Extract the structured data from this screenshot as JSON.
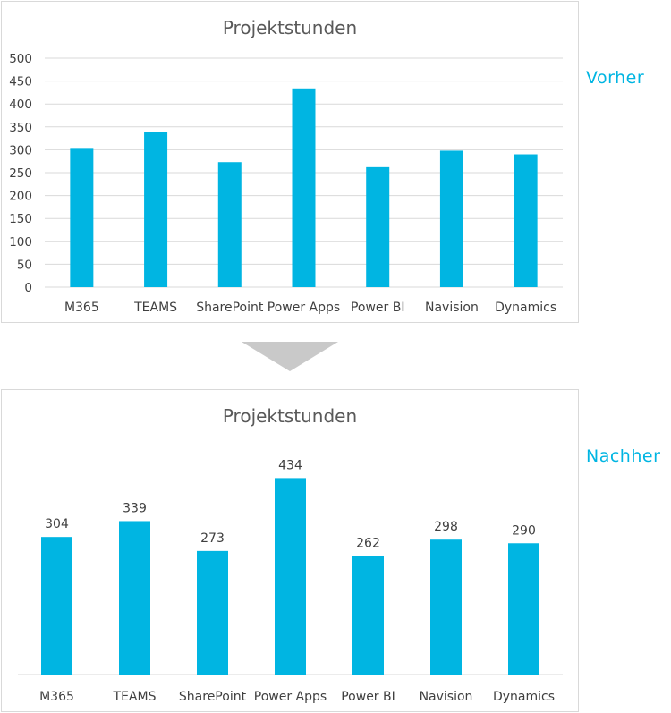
{
  "labels": {
    "before": "Vorher",
    "after": "Nachher"
  },
  "colors": {
    "bar": "#00b5e2",
    "grid": "#d9d9d9",
    "axis": "#d9d9d9",
    "arrow": "#c9c9c9"
  },
  "chart_data": [
    {
      "type": "bar",
      "title": "Projektstunden",
      "categories": [
        "M365",
        "TEAMS",
        "SharePoint",
        "Power Apps",
        "Power BI",
        "Navision",
        "Dynamics"
      ],
      "values": [
        304,
        339,
        273,
        434,
        262,
        298,
        290
      ],
      "ylim": [
        0,
        500
      ],
      "yticks": [
        0,
        50,
        100,
        150,
        200,
        250,
        300,
        350,
        400,
        450,
        500
      ],
      "grid": true,
      "data_labels": false
    },
    {
      "type": "bar",
      "title": "Projektstunden",
      "categories": [
        "M365",
        "TEAMS",
        "SharePoint",
        "Power Apps",
        "Power BI",
        "Navision",
        "Dynamics"
      ],
      "values": [
        304,
        339,
        273,
        434,
        262,
        298,
        290
      ],
      "ylim": [
        0,
        500
      ],
      "grid": false,
      "y_axis": false,
      "data_labels": true
    }
  ]
}
